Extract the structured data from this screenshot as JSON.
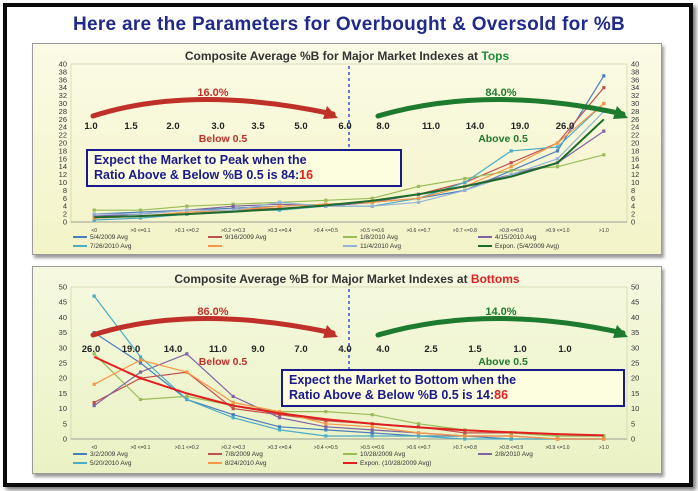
{
  "header": {
    "title": "Here are the Parameters for Overbought & Oversold for %B"
  },
  "tops_panel": {
    "title_prefix": "Composite Average %B for Major Market Indexes at ",
    "title_highlight": "Tops",
    "highlight_color": "#1e8c3a",
    "left_pct": "16.0%",
    "right_pct": "84.0%",
    "left_label": "Below 0.5",
    "right_label": "Above 0.5",
    "ratio_row": [
      "1.0",
      "1.5",
      "2.0",
      "3.0",
      "3.5",
      "5.0",
      "6.0",
      "8.0",
      "11.0",
      "14.0",
      "19.0",
      "26.0"
    ],
    "callout_line1": "Expect the Market to Peak when the",
    "callout_line2_prefix": "Ratio Above & Below %B 0.5 is ",
    "callout_ratio_a": "84",
    "callout_colon": ":",
    "callout_ratio_b": "16"
  },
  "bottoms_panel": {
    "title_prefix": "Composite Average %B for Major Market Indexes at ",
    "title_highlight": "Bottoms",
    "highlight_color": "#e02020",
    "left_pct": "86.0%",
    "right_pct": "14.0%",
    "left_label": "Below 0.5",
    "right_label": "Above 0.5",
    "ratio_row": [
      "26.0",
      "19.0",
      "14.0",
      "11.0",
      "9.0",
      "7.0",
      "4.0",
      "4.0",
      "2.5",
      "1.5",
      "1.0",
      "1.0"
    ],
    "callout_line1": "Expect the Market to Bottom when the",
    "callout_line2_prefix": "Ratio Above & Below %B 0.5 is ",
    "callout_ratio_a": "14",
    "callout_colon": ":",
    "callout_ratio_b": "86"
  },
  "chart_data": [
    {
      "type": "line",
      "title": "Composite Average %B for Major Market Indexes at Tops",
      "categories": [
        "<0",
        ">0 <=0.1",
        ">0.1 <=0.2",
        ">0.2 <=0.3",
        ">0.3 <=0.4",
        ">0.4 <=0.5",
        ">0.5 <=0.6",
        ">0.6 <=0.7",
        ">0.7 <=0.8",
        ">0.8 <=0.9",
        ">0.9 <=1.0",
        ">1.0"
      ],
      "ylim": [
        0,
        40
      ],
      "yticks": [
        "0",
        "2",
        "4",
        "6",
        "8",
        "10",
        "12",
        "14",
        "16",
        "18",
        "20",
        "22",
        "24",
        "26",
        "28",
        "30",
        "32",
        "34",
        "36",
        "38",
        "40"
      ],
      "grid": false,
      "legend_position": "bottom",
      "series": [
        {
          "name": "5/4/2009 Avg",
          "color": "#4a7ebb",
          "values": [
            2,
            2.5,
            3,
            3.5,
            4,
            4.5,
            5,
            6,
            8,
            13,
            18,
            37
          ]
        },
        {
          "name": "9/16/2009 Avg",
          "color": "#c0504d",
          "values": [
            1,
            1.5,
            2,
            3,
            3.5,
            4,
            5,
            7,
            10,
            15,
            20,
            34
          ]
        },
        {
          "name": "1/8/2010 Avg",
          "color": "#9bbb59",
          "values": [
            3,
            3,
            4,
            4.5,
            5,
            5.5,
            6,
            9,
            11,
            13,
            14,
            17
          ]
        },
        {
          "name": "4/15/2010 Avg",
          "color": "#8064a2",
          "values": [
            1.5,
            2,
            3,
            4,
            4.5,
            4,
            5,
            7,
            9,
            12,
            15,
            23
          ]
        },
        {
          "name": "7/26/2010 Avg",
          "color": "#4bacc6",
          "values": [
            0.5,
            1,
            2,
            3,
            3,
            4,
            4,
            6,
            10,
            18,
            19,
            30
          ]
        },
        {
          "name": "",
          "color": "#f79646",
          "values": [
            1,
            1.5,
            2.5,
            3,
            4,
            4.5,
            5,
            6,
            9,
            14,
            20,
            30
          ]
        },
        {
          "name": "11/4/2010 Avg",
          "color": "#95b3d7",
          "values": [
            2,
            2,
            3,
            3,
            5,
            4,
            4,
            5,
            8,
            12,
            16,
            28
          ]
        },
        {
          "name": "Expon. (5/4/2009 Avg)",
          "color": "#1e6b2e",
          "values": [
            1.2,
            1.5,
            2,
            2.6,
            3.3,
            4.2,
            5.4,
            7,
            9,
            11.5,
            15,
            26
          ]
        }
      ]
    },
    {
      "type": "line",
      "title": "Composite Average %B for Major Market Indexes at Bottoms",
      "categories": [
        "<0",
        ">0 <=0.1",
        ">0.1 <=0.2",
        ">0.2 <=0.3",
        ">0.3 <=0.4",
        ">0.4 <=0.5",
        ">0.5 <=0.6",
        ">0.6 <=0.7",
        ">0.7 <=0.8",
        ">0.8 <=0.9",
        ">0.9 <=1.0",
        ">1.0"
      ],
      "ylim": [
        0,
        50
      ],
      "yticks": [
        "0",
        "5",
        "10",
        "15",
        "20",
        "25",
        "30",
        "35",
        "40",
        "45",
        "50"
      ],
      "grid": false,
      "legend_position": "bottom",
      "series": [
        {
          "name": "3/2/2009 Avg",
          "color": "#4a7ebb",
          "values": [
            35,
            25,
            13,
            8,
            4,
            3,
            2,
            1,
            1,
            0,
            0,
            0
          ]
        },
        {
          "name": "7/8/2009 Avg",
          "color": "#c0504d",
          "values": [
            12,
            20,
            22,
            10,
            8,
            6,
            5,
            4,
            2,
            2,
            1,
            1
          ]
        },
        {
          "name": "10/28/2009 Avg",
          "color": "#9bbb59",
          "values": [
            28,
            13,
            14,
            11,
            9,
            9,
            8,
            5,
            3,
            2,
            1,
            1
          ]
        },
        {
          "name": "2/8/2010 Avg",
          "color": "#8064a2",
          "values": [
            11,
            22,
            28,
            14,
            7,
            4,
            3,
            2,
            1,
            1,
            0,
            0
          ]
        },
        {
          "name": "5/20/2010 Avg",
          "color": "#4bacc6",
          "values": [
            47,
            27,
            13,
            7,
            3,
            1,
            1,
            1,
            0,
            0,
            0,
            0
          ]
        },
        {
          "name": "8/24/2010 Avg",
          "color": "#f79646",
          "values": [
            18,
            26,
            22,
            12,
            9,
            5,
            4,
            2,
            1,
            1,
            0,
            0
          ]
        },
        {
          "name": "Expon. (10/28/2009 Avg)",
          "color": "#e02020",
          "values": [
            27,
            20,
            15,
            11,
            8.5,
            6.5,
            5,
            3.8,
            2.9,
            2.2,
            1.6,
            1.2
          ]
        }
      ]
    }
  ]
}
